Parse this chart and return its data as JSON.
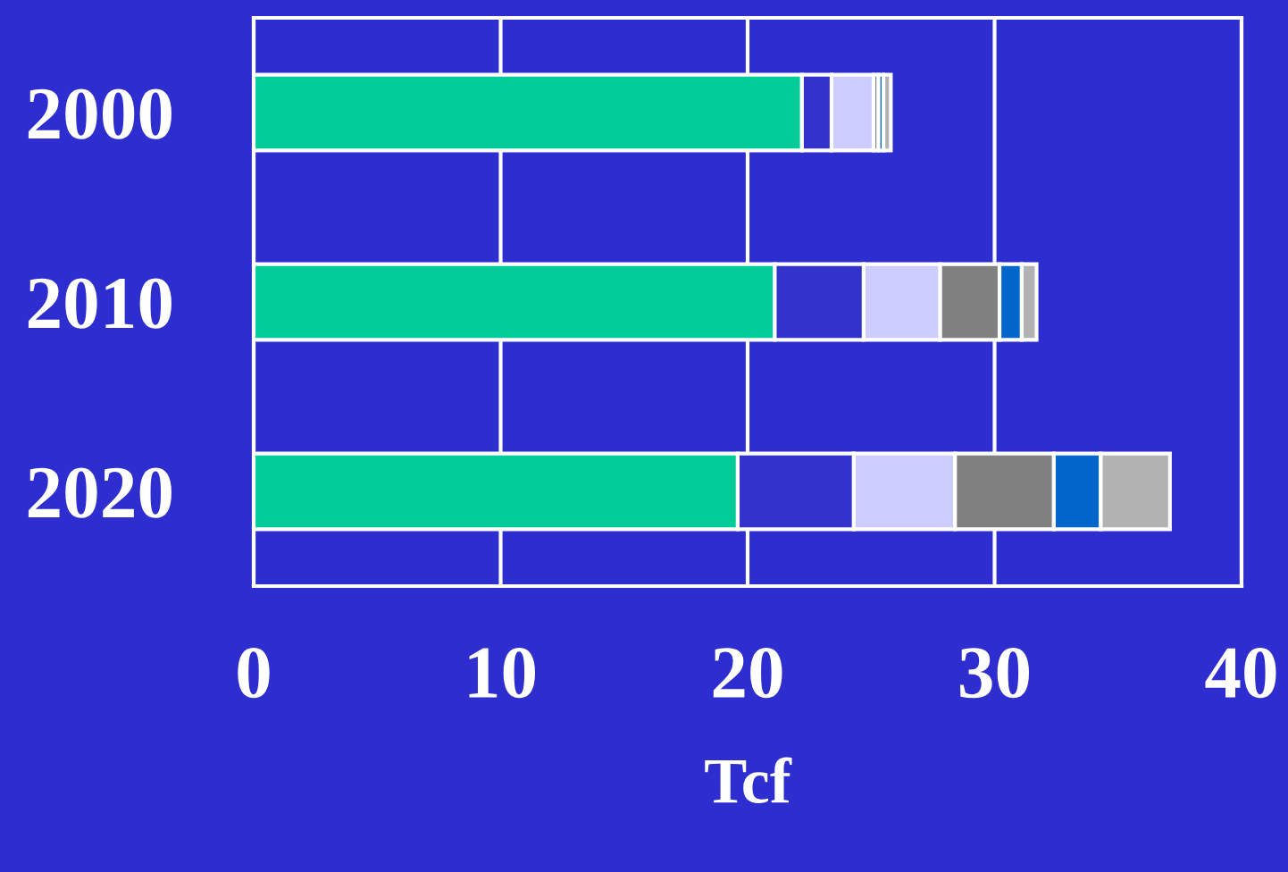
{
  "chart_data": {
    "type": "bar",
    "orientation": "horizontal",
    "stacked": true,
    "xlabel": "Tcf",
    "categories": [
      "2000",
      "2010",
      "2020"
    ],
    "series": [
      {
        "color": "#00cc99",
        "values": [
          22.2,
          21.1,
          19.6
        ]
      },
      {
        "color": "#3333cc",
        "values": [
          1.2,
          3.6,
          4.7
        ]
      },
      {
        "color": "#ccccff",
        "values": [
          1.7,
          3.1,
          4.1
        ]
      },
      {
        "color": "#808080",
        "values": [
          0.2,
          2.4,
          4.0
        ]
      },
      {
        "color": "#0066cc",
        "values": [
          0.2,
          0.9,
          1.9
        ]
      },
      {
        "color": "#b2b2b2",
        "values": [
          0.3,
          0.6,
          2.8
        ]
      }
    ],
    "xlim": [
      0,
      40
    ],
    "xticks": [
      0,
      10,
      20,
      30,
      40
    ],
    "grid": "x"
  }
}
